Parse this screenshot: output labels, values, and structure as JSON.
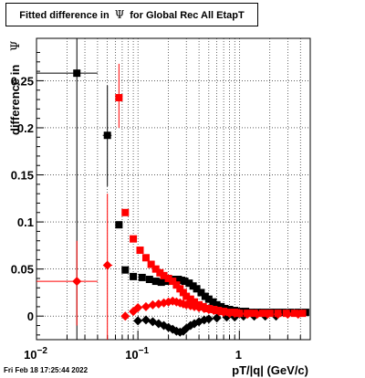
{
  "chart_data": {
    "type": "scatter",
    "title_parts": [
      "Fitted difference in",
      "Ψ",
      "for Global Rec All EtapT"
    ],
    "xlabel": "pT/|q| (GeV/c)",
    "ylabel": "difference in",
    "ylabel_symbol": "Ψ",
    "x_scale": "log",
    "xlim": [
      0.01,
      5
    ],
    "ylim": [
      -0.025,
      0.295
    ],
    "grid": true,
    "x_ticks": [
      {
        "value": 0.01,
        "label": "10",
        "exp": "−2"
      },
      {
        "value": 0.1,
        "label": "10",
        "exp": "−1"
      },
      {
        "value": 1,
        "label": "1",
        "exp": ""
      }
    ],
    "y_ticks": [
      {
        "value": 0,
        "label": "0"
      },
      {
        "value": 0.05,
        "label": "0.05"
      },
      {
        "value": 0.1,
        "label": "0.1"
      },
      {
        "value": 0.15,
        "label": "0.15"
      },
      {
        "value": 0.2,
        "label": "0.2"
      },
      {
        "value": 0.25,
        "label": "0.25"
      }
    ],
    "series": [
      {
        "color": "#000000",
        "marker": "square",
        "points": [
          {
            "x": 0.025,
            "y": 0.258,
            "xlo": 0.01,
            "xhi": 0.04,
            "ylo": -0.025,
            "yhi": 0.295
          },
          {
            "x": 0.05,
            "y": 0.192,
            "xlo": 0.045,
            "xhi": 0.055,
            "ylo": 0.138,
            "yhi": 0.245
          },
          {
            "x": 0.065,
            "y": 0.097
          },
          {
            "x": 0.075,
            "y": 0.049
          },
          {
            "x": 0.09,
            "y": 0.042
          },
          {
            "x": 0.11,
            "y": 0.041
          },
          {
            "x": 0.13,
            "y": 0.039
          },
          {
            "x": 0.15,
            "y": 0.037
          },
          {
            "x": 0.17,
            "y": 0.036
          },
          {
            "x": 0.19,
            "y": 0.037
          },
          {
            "x": 0.21,
            "y": 0.038
          },
          {
            "x": 0.23,
            "y": 0.039
          },
          {
            "x": 0.25,
            "y": 0.039
          },
          {
            "x": 0.27,
            "y": 0.038
          },
          {
            "x": 0.29,
            "y": 0.037
          },
          {
            "x": 0.32,
            "y": 0.035
          },
          {
            "x": 0.35,
            "y": 0.032
          },
          {
            "x": 0.38,
            "y": 0.029
          },
          {
            "x": 0.42,
            "y": 0.025
          },
          {
            "x": 0.46,
            "y": 0.021
          },
          {
            "x": 0.5,
            "y": 0.018
          },
          {
            "x": 0.55,
            "y": 0.015
          },
          {
            "x": 0.6,
            "y": 0.012
          },
          {
            "x": 0.66,
            "y": 0.01
          },
          {
            "x": 0.72,
            "y": 0.008
          },
          {
            "x": 0.8,
            "y": 0.007
          },
          {
            "x": 0.9,
            "y": 0.006
          },
          {
            "x": 1.0,
            "y": 0.005
          },
          {
            "x": 1.15,
            "y": 0.005
          },
          {
            "x": 1.3,
            "y": 0.004
          },
          {
            "x": 1.5,
            "y": 0.004
          },
          {
            "x": 1.7,
            "y": 0.004
          },
          {
            "x": 2.0,
            "y": 0.004
          },
          {
            "x": 2.3,
            "y": 0.004
          },
          {
            "x": 2.7,
            "y": 0.004
          },
          {
            "x": 3.2,
            "y": 0.004
          },
          {
            "x": 3.8,
            "y": 0.004
          },
          {
            "x": 4.5,
            "y": 0.004
          }
        ]
      },
      {
        "color": "#000000",
        "marker": "diamond",
        "points": [
          {
            "x": 0.1,
            "y": -0.005
          },
          {
            "x": 0.12,
            "y": -0.004
          },
          {
            "x": 0.14,
            "y": -0.006
          },
          {
            "x": 0.16,
            "y": -0.008
          },
          {
            "x": 0.18,
            "y": -0.01
          },
          {
            "x": 0.2,
            "y": -0.012
          },
          {
            "x": 0.22,
            "y": -0.014
          },
          {
            "x": 0.24,
            "y": -0.016
          },
          {
            "x": 0.26,
            "y": -0.017
          },
          {
            "x": 0.28,
            "y": -0.016
          },
          {
            "x": 0.3,
            "y": -0.013
          },
          {
            "x": 0.33,
            "y": -0.01
          },
          {
            "x": 0.36,
            "y": -0.008
          },
          {
            "x": 0.4,
            "y": -0.006
          },
          {
            "x": 0.45,
            "y": -0.004
          },
          {
            "x": 0.5,
            "y": -0.003
          },
          {
            "x": 0.6,
            "y": -0.002
          },
          {
            "x": 0.75,
            "y": -0.001
          },
          {
            "x": 0.9,
            "y": -0.001
          },
          {
            "x": 1.1,
            "y": 0.0
          },
          {
            "x": 1.4,
            "y": 0.0
          },
          {
            "x": 1.8,
            "y": 0.0
          },
          {
            "x": 2.3,
            "y": 0.0
          }
        ]
      },
      {
        "color": "#ff0000",
        "marker": "square",
        "points": [
          {
            "x": 0.065,
            "y": 0.232,
            "xlo": 0.062,
            "xhi": 0.068,
            "ylo": 0.2,
            "yhi": 0.268
          },
          {
            "x": 0.075,
            "y": 0.11
          },
          {
            "x": 0.09,
            "y": 0.082
          },
          {
            "x": 0.105,
            "y": 0.07
          },
          {
            "x": 0.12,
            "y": 0.062
          },
          {
            "x": 0.135,
            "y": 0.055
          },
          {
            "x": 0.15,
            "y": 0.05
          },
          {
            "x": 0.165,
            "y": 0.046
          },
          {
            "x": 0.18,
            "y": 0.043
          },
          {
            "x": 0.2,
            "y": 0.04
          },
          {
            "x": 0.22,
            "y": 0.037
          },
          {
            "x": 0.24,
            "y": 0.033
          },
          {
            "x": 0.26,
            "y": 0.029
          },
          {
            "x": 0.28,
            "y": 0.025
          },
          {
            "x": 0.3,
            "y": 0.021
          },
          {
            "x": 0.33,
            "y": 0.018
          },
          {
            "x": 0.36,
            "y": 0.015
          },
          {
            "x": 0.4,
            "y": 0.012
          },
          {
            "x": 0.44,
            "y": 0.01
          },
          {
            "x": 0.5,
            "y": 0.008
          },
          {
            "x": 0.56,
            "y": 0.007
          },
          {
            "x": 0.62,
            "y": 0.006
          },
          {
            "x": 0.7,
            "y": 0.005
          },
          {
            "x": 0.8,
            "y": 0.004
          },
          {
            "x": 0.9,
            "y": 0.004
          },
          {
            "x": 1.0,
            "y": 0.003
          },
          {
            "x": 1.2,
            "y": 0.003
          },
          {
            "x": 1.4,
            "y": 0.003
          },
          {
            "x": 1.7,
            "y": 0.003
          },
          {
            "x": 2.0,
            "y": 0.003
          },
          {
            "x": 2.4,
            "y": 0.003
          },
          {
            "x": 2.9,
            "y": 0.003
          },
          {
            "x": 3.5,
            "y": 0.003
          },
          {
            "x": 4.2,
            "y": 0.003
          }
        ]
      },
      {
        "color": "#ff0000",
        "marker": "diamond",
        "points": [
          {
            "x": 0.025,
            "y": 0.037,
            "xlo": 0.01,
            "xhi": 0.04,
            "ylo": -0.01,
            "yhi": 0.08
          },
          {
            "x": 0.05,
            "y": 0.054,
            "xlo": 0.046,
            "xhi": 0.056,
            "ylo": -0.025,
            "yhi": 0.13
          },
          {
            "x": 0.075,
            "y": 0.0
          },
          {
            "x": 0.09,
            "y": 0.005
          },
          {
            "x": 0.1,
            "y": 0.009
          },
          {
            "x": 0.12,
            "y": 0.01
          },
          {
            "x": 0.14,
            "y": 0.012
          },
          {
            "x": 0.16,
            "y": 0.013
          },
          {
            "x": 0.18,
            "y": 0.014
          },
          {
            "x": 0.2,
            "y": 0.015
          },
          {
            "x": 0.22,
            "y": 0.016
          },
          {
            "x": 0.24,
            "y": 0.015
          },
          {
            "x": 0.26,
            "y": 0.014
          },
          {
            "x": 0.28,
            "y": 0.013
          },
          {
            "x": 0.3,
            "y": 0.012
          },
          {
            "x": 0.33,
            "y": 0.011
          },
          {
            "x": 0.36,
            "y": 0.01
          },
          {
            "x": 0.4,
            "y": 0.009
          },
          {
            "x": 0.45,
            "y": 0.008
          },
          {
            "x": 0.5,
            "y": 0.007
          },
          {
            "x": 0.56,
            "y": 0.006
          },
          {
            "x": 0.63,
            "y": 0.005
          },
          {
            "x": 0.7,
            "y": 0.004
          },
          {
            "x": 0.8,
            "y": 0.003
          },
          {
            "x": 0.9,
            "y": 0.003
          },
          {
            "x": 1.0,
            "y": 0.003
          },
          {
            "x": 1.2,
            "y": 0.002
          },
          {
            "x": 1.5,
            "y": 0.002
          },
          {
            "x": 1.9,
            "y": 0.002
          },
          {
            "x": 2.4,
            "y": 0.002
          },
          {
            "x": 3.0,
            "y": 0.002
          },
          {
            "x": 3.8,
            "y": 0.002
          }
        ]
      }
    ]
  },
  "footer": {
    "timestamp": "Fri Feb 18 17:25:44 2022"
  }
}
